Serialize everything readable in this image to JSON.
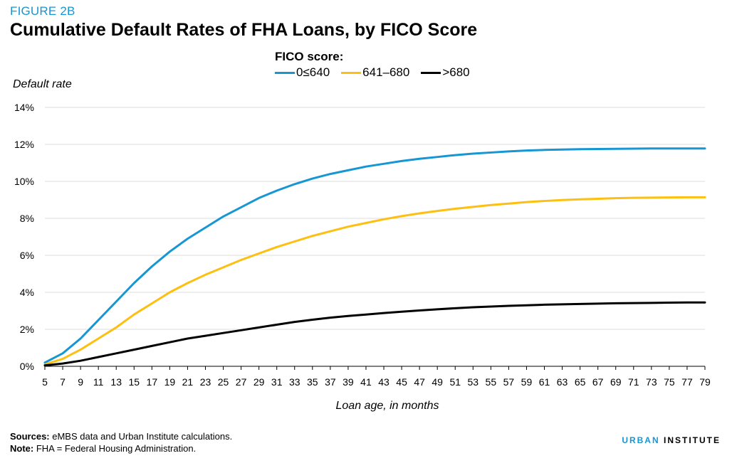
{
  "figure_label": "FIGURE 2B",
  "title": "Cumulative Default Rates of FHA Loans, by FICO Score",
  "legend": {
    "title": "FICO score:",
    "items": [
      {
        "label": "0≤640",
        "color": "#1696d2"
      },
      {
        "label": "641–680",
        "color": "#fdbf11"
      },
      {
        "label": ">680",
        "color": "#000000"
      }
    ]
  },
  "footer": {
    "sources_label": "Sources:",
    "sources_text": " eMBS data and Urban Institute calculations.",
    "note_label": "Note:",
    "note_text": " FHA = Federal Housing Administration."
  },
  "brand": {
    "part1": "URBAN",
    "part2": "INSTITUTE"
  },
  "chart_data": {
    "type": "line",
    "title": "Cumulative Default Rates of FHA Loans, by FICO Score",
    "xlabel": "Loan age, in months",
    "ylabel": "Default rate",
    "x_range": [
      5,
      79
    ],
    "x_tick_labels": [
      "5",
      "7",
      "9",
      "11",
      "13",
      "15",
      "17",
      "19",
      "21",
      "23",
      "25",
      "27",
      "29",
      "31",
      "33",
      "35",
      "37",
      "39",
      "41",
      "43",
      "45",
      "47",
      "49",
      "51",
      "53",
      "55",
      "57",
      "59",
      "61",
      "63",
      "65",
      "67",
      "69",
      "71",
      "73",
      "75",
      "77",
      "79"
    ],
    "ylim": [
      0,
      14
    ],
    "y_tick_labels": [
      "0%",
      "2%",
      "4%",
      "6%",
      "8%",
      "10%",
      "12%",
      "14%"
    ],
    "y_tick_values": [
      0,
      2,
      4,
      6,
      8,
      10,
      12,
      14
    ],
    "grid": "horizontal",
    "x": [
      5,
      7,
      9,
      11,
      13,
      15,
      17,
      19,
      21,
      23,
      25,
      27,
      29,
      31,
      33,
      35,
      37,
      39,
      41,
      43,
      45,
      47,
      49,
      51,
      53,
      55,
      57,
      59,
      61,
      63,
      65,
      67,
      69,
      71,
      73,
      75,
      77,
      79
    ],
    "series": [
      {
        "name": "0≤640",
        "color": "#1696d2",
        "values": [
          0.2,
          0.7,
          1.5,
          2.5,
          3.5,
          4.5,
          5.4,
          6.2,
          6.9,
          7.5,
          8.1,
          8.6,
          9.1,
          9.5,
          9.85,
          10.15,
          10.4,
          10.6,
          10.8,
          10.95,
          11.1,
          11.22,
          11.32,
          11.42,
          11.5,
          11.56,
          11.62,
          11.67,
          11.7,
          11.72,
          11.74,
          11.75,
          11.76,
          11.77,
          11.78,
          11.78,
          11.78,
          11.78
        ]
      },
      {
        "name": "641–680",
        "color": "#fdbf11",
        "values": [
          0.1,
          0.4,
          0.9,
          1.5,
          2.1,
          2.8,
          3.4,
          4.0,
          4.5,
          4.95,
          5.35,
          5.75,
          6.1,
          6.45,
          6.75,
          7.05,
          7.3,
          7.55,
          7.75,
          7.95,
          8.12,
          8.27,
          8.4,
          8.52,
          8.62,
          8.72,
          8.8,
          8.88,
          8.94,
          8.99,
          9.03,
          9.06,
          9.09,
          9.11,
          9.12,
          9.13,
          9.14,
          9.14
        ]
      },
      {
        "name": ">680",
        "color": "#000000",
        "values": [
          0.05,
          0.15,
          0.3,
          0.5,
          0.7,
          0.9,
          1.1,
          1.3,
          1.5,
          1.65,
          1.8,
          1.95,
          2.1,
          2.25,
          2.4,
          2.52,
          2.63,
          2.72,
          2.8,
          2.88,
          2.95,
          3.02,
          3.08,
          3.14,
          3.19,
          3.23,
          3.27,
          3.3,
          3.33,
          3.35,
          3.37,
          3.39,
          3.41,
          3.42,
          3.43,
          3.44,
          3.45,
          3.45
        ]
      }
    ]
  }
}
